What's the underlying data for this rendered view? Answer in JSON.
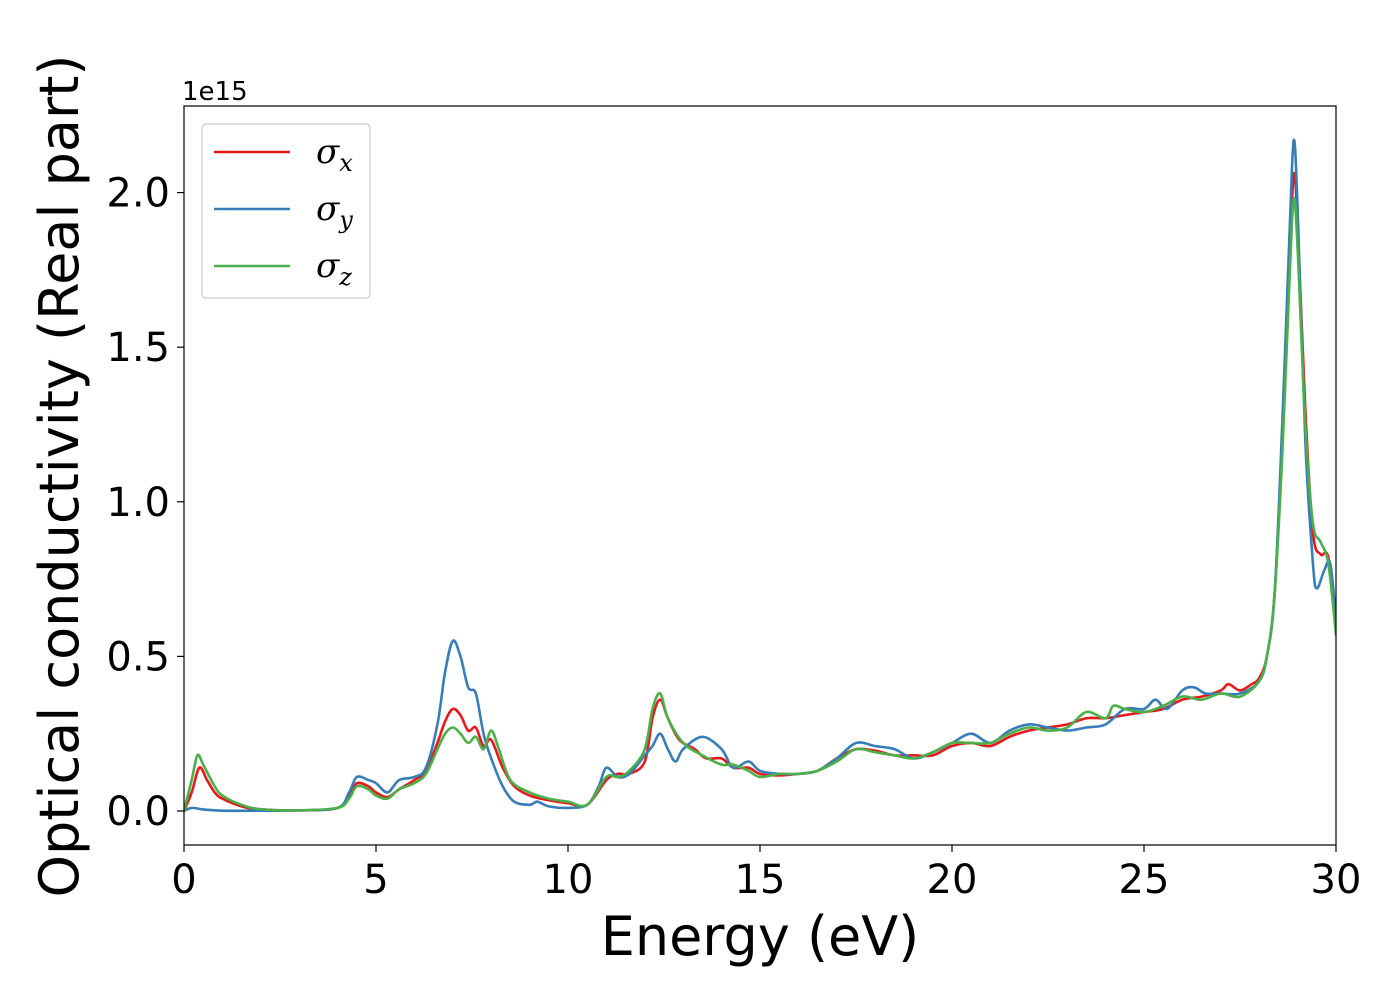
{
  "chart_data": {
    "type": "line",
    "xlabel": "Energy (eV)",
    "ylabel": "Optical conductivity (Real part)",
    "y_offset_text": "1e15",
    "xlim": [
      0,
      30
    ],
    "ylim": [
      -0.11,
      2.28
    ],
    "x_ticks": [
      0,
      5,
      10,
      15,
      20,
      25,
      30
    ],
    "x_tick_labels": [
      "0",
      "5",
      "10",
      "15",
      "20",
      "25",
      "30"
    ],
    "y_ticks": [
      0.0,
      0.5,
      1.0,
      1.5,
      2.0
    ],
    "y_tick_labels": [
      "0.0",
      "0.5",
      "1.0",
      "1.5",
      "2.0"
    ],
    "grid": false,
    "legend_position": "upper-left",
    "series": [
      {
        "name": "σx",
        "legend_base": "σ",
        "legend_sub": "x",
        "color": "#e41a1c",
        "points": [
          [
            0,
            0.0
          ],
          [
            0.2,
            0.06
          ],
          [
            0.4,
            0.14
          ],
          [
            0.6,
            0.1
          ],
          [
            0.8,
            0.06
          ],
          [
            1.0,
            0.04
          ],
          [
            1.5,
            0.015
          ],
          [
            2.0,
            0.005
          ],
          [
            3.0,
            0.002
          ],
          [
            4.0,
            0.01
          ],
          [
            4.3,
            0.05
          ],
          [
            4.5,
            0.09
          ],
          [
            4.8,
            0.08
          ],
          [
            5.0,
            0.06
          ],
          [
            5.3,
            0.045
          ],
          [
            5.6,
            0.07
          ],
          [
            6.0,
            0.1
          ],
          [
            6.3,
            0.13
          ],
          [
            6.6,
            0.22
          ],
          [
            6.8,
            0.29
          ],
          [
            7.0,
            0.33
          ],
          [
            7.2,
            0.31
          ],
          [
            7.4,
            0.26
          ],
          [
            7.6,
            0.27
          ],
          [
            7.8,
            0.21
          ],
          [
            8.0,
            0.23
          ],
          [
            8.3,
            0.14
          ],
          [
            8.6,
            0.08
          ],
          [
            9.0,
            0.05
          ],
          [
            9.5,
            0.035
          ],
          [
            10.0,
            0.025
          ],
          [
            10.5,
            0.02
          ],
          [
            11.0,
            0.1
          ],
          [
            11.3,
            0.12
          ],
          [
            11.6,
            0.12
          ],
          [
            12.0,
            0.16
          ],
          [
            12.2,
            0.3
          ],
          [
            12.4,
            0.36
          ],
          [
            12.6,
            0.3
          ],
          [
            12.9,
            0.23
          ],
          [
            13.3,
            0.2
          ],
          [
            13.6,
            0.17
          ],
          [
            14.0,
            0.17
          ],
          [
            14.3,
            0.14
          ],
          [
            14.7,
            0.14
          ],
          [
            15.0,
            0.12
          ],
          [
            15.5,
            0.115
          ],
          [
            16.0,
            0.12
          ],
          [
            16.5,
            0.13
          ],
          [
            17.0,
            0.17
          ],
          [
            17.5,
            0.2
          ],
          [
            18.0,
            0.195
          ],
          [
            18.5,
            0.18
          ],
          [
            19.0,
            0.18
          ],
          [
            19.5,
            0.18
          ],
          [
            20.0,
            0.21
          ],
          [
            20.5,
            0.22
          ],
          [
            21.0,
            0.21
          ],
          [
            21.5,
            0.24
          ],
          [
            22.0,
            0.26
          ],
          [
            22.5,
            0.27
          ],
          [
            23.0,
            0.28
          ],
          [
            23.5,
            0.3
          ],
          [
            24.0,
            0.3
          ],
          [
            24.5,
            0.31
          ],
          [
            25.0,
            0.32
          ],
          [
            25.5,
            0.33
          ],
          [
            26.0,
            0.36
          ],
          [
            26.5,
            0.37
          ],
          [
            27.0,
            0.39
          ],
          [
            27.2,
            0.41
          ],
          [
            27.5,
            0.39
          ],
          [
            27.8,
            0.41
          ],
          [
            28.0,
            0.43
          ],
          [
            28.2,
            0.5
          ],
          [
            28.4,
            0.7
          ],
          [
            28.6,
            1.2
          ],
          [
            28.8,
            1.8
          ],
          [
            28.9,
            2.06
          ],
          [
            29.0,
            1.9
          ],
          [
            29.2,
            1.3
          ],
          [
            29.4,
            0.9
          ],
          [
            29.6,
            0.83
          ],
          [
            29.8,
            0.82
          ],
          [
            30.0,
            0.6
          ]
        ]
      },
      {
        "name": "σy",
        "legend_base": "σ",
        "legend_sub": "y",
        "color": "#377eb8",
        "points": [
          [
            0,
            0.0
          ],
          [
            0.2,
            0.01
          ],
          [
            0.5,
            0.005
          ],
          [
            1.0,
            0.001
          ],
          [
            2.0,
            0.001
          ],
          [
            3.0,
            0.002
          ],
          [
            4.0,
            0.01
          ],
          [
            4.3,
            0.06
          ],
          [
            4.5,
            0.11
          ],
          [
            4.8,
            0.1
          ],
          [
            5.0,
            0.09
          ],
          [
            5.3,
            0.06
          ],
          [
            5.6,
            0.1
          ],
          [
            6.0,
            0.11
          ],
          [
            6.3,
            0.14
          ],
          [
            6.6,
            0.28
          ],
          [
            6.8,
            0.45
          ],
          [
            7.0,
            0.55
          ],
          [
            7.2,
            0.5
          ],
          [
            7.4,
            0.4
          ],
          [
            7.6,
            0.38
          ],
          [
            7.8,
            0.25
          ],
          [
            8.0,
            0.17
          ],
          [
            8.3,
            0.08
          ],
          [
            8.6,
            0.03
          ],
          [
            9.0,
            0.02
          ],
          [
            9.2,
            0.03
          ],
          [
            9.5,
            0.015
          ],
          [
            10.0,
            0.01
          ],
          [
            10.5,
            0.02
          ],
          [
            10.8,
            0.08
          ],
          [
            11.0,
            0.14
          ],
          [
            11.3,
            0.11
          ],
          [
            11.6,
            0.12
          ],
          [
            12.0,
            0.18
          ],
          [
            12.2,
            0.21
          ],
          [
            12.4,
            0.25
          ],
          [
            12.6,
            0.2
          ],
          [
            12.8,
            0.16
          ],
          [
            13.0,
            0.2
          ],
          [
            13.5,
            0.24
          ],
          [
            14.0,
            0.2
          ],
          [
            14.3,
            0.14
          ],
          [
            14.7,
            0.16
          ],
          [
            15.0,
            0.13
          ],
          [
            15.5,
            0.12
          ],
          [
            16.0,
            0.12
          ],
          [
            16.5,
            0.13
          ],
          [
            17.0,
            0.17
          ],
          [
            17.5,
            0.22
          ],
          [
            18.0,
            0.21
          ],
          [
            18.5,
            0.2
          ],
          [
            19.0,
            0.17
          ],
          [
            19.5,
            0.19
          ],
          [
            20.0,
            0.22
          ],
          [
            20.5,
            0.25
          ],
          [
            21.0,
            0.22
          ],
          [
            21.5,
            0.26
          ],
          [
            22.0,
            0.28
          ],
          [
            22.5,
            0.27
          ],
          [
            23.0,
            0.26
          ],
          [
            23.5,
            0.27
          ],
          [
            24.0,
            0.28
          ],
          [
            24.5,
            0.33
          ],
          [
            25.0,
            0.33
          ],
          [
            25.3,
            0.36
          ],
          [
            25.6,
            0.33
          ],
          [
            26.0,
            0.39
          ],
          [
            26.3,
            0.4
          ],
          [
            26.6,
            0.38
          ],
          [
            27.0,
            0.38
          ],
          [
            27.5,
            0.38
          ],
          [
            28.0,
            0.42
          ],
          [
            28.2,
            0.5
          ],
          [
            28.4,
            0.7
          ],
          [
            28.6,
            1.25
          ],
          [
            28.8,
            1.9
          ],
          [
            28.9,
            2.17
          ],
          [
            29.0,
            1.95
          ],
          [
            29.2,
            1.2
          ],
          [
            29.4,
            0.8
          ],
          [
            29.5,
            0.72
          ],
          [
            29.7,
            0.78
          ],
          [
            29.85,
            0.8
          ],
          [
            30.0,
            0.62
          ]
        ]
      },
      {
        "name": "σz",
        "legend_base": "σ",
        "legend_sub": "z",
        "color": "#4daf4a",
        "points": [
          [
            0,
            0.0
          ],
          [
            0.2,
            0.1
          ],
          [
            0.35,
            0.18
          ],
          [
            0.5,
            0.15
          ],
          [
            0.8,
            0.08
          ],
          [
            1.0,
            0.05
          ],
          [
            1.5,
            0.02
          ],
          [
            2.0,
            0.006
          ],
          [
            3.0,
            0.002
          ],
          [
            4.0,
            0.01
          ],
          [
            4.3,
            0.04
          ],
          [
            4.5,
            0.08
          ],
          [
            4.8,
            0.07
          ],
          [
            5.0,
            0.05
          ],
          [
            5.3,
            0.04
          ],
          [
            5.6,
            0.07
          ],
          [
            6.0,
            0.09
          ],
          [
            6.3,
            0.12
          ],
          [
            6.6,
            0.2
          ],
          [
            6.8,
            0.25
          ],
          [
            7.0,
            0.27
          ],
          [
            7.2,
            0.25
          ],
          [
            7.4,
            0.22
          ],
          [
            7.6,
            0.24
          ],
          [
            7.8,
            0.2
          ],
          [
            8.0,
            0.26
          ],
          [
            8.2,
            0.2
          ],
          [
            8.5,
            0.1
          ],
          [
            9.0,
            0.06
          ],
          [
            9.5,
            0.04
          ],
          [
            10.0,
            0.03
          ],
          [
            10.5,
            0.02
          ],
          [
            11.0,
            0.11
          ],
          [
            11.3,
            0.11
          ],
          [
            11.6,
            0.13
          ],
          [
            12.0,
            0.2
          ],
          [
            12.2,
            0.33
          ],
          [
            12.4,
            0.38
          ],
          [
            12.6,
            0.3
          ],
          [
            13.0,
            0.22
          ],
          [
            13.5,
            0.18
          ],
          [
            14.0,
            0.15
          ],
          [
            14.3,
            0.15
          ],
          [
            14.7,
            0.13
          ],
          [
            15.0,
            0.11
          ],
          [
            15.5,
            0.12
          ],
          [
            16.0,
            0.12
          ],
          [
            16.5,
            0.13
          ],
          [
            17.0,
            0.16
          ],
          [
            17.5,
            0.2
          ],
          [
            18.0,
            0.19
          ],
          [
            18.5,
            0.18
          ],
          [
            19.0,
            0.17
          ],
          [
            19.5,
            0.19
          ],
          [
            20.0,
            0.22
          ],
          [
            20.5,
            0.22
          ],
          [
            21.0,
            0.22
          ],
          [
            21.5,
            0.25
          ],
          [
            22.0,
            0.27
          ],
          [
            22.5,
            0.26
          ],
          [
            23.0,
            0.27
          ],
          [
            23.5,
            0.32
          ],
          [
            24.0,
            0.3
          ],
          [
            24.2,
            0.34
          ],
          [
            24.5,
            0.33
          ],
          [
            25.0,
            0.32
          ],
          [
            25.5,
            0.34
          ],
          [
            26.0,
            0.37
          ],
          [
            26.5,
            0.36
          ],
          [
            27.0,
            0.38
          ],
          [
            27.5,
            0.37
          ],
          [
            28.0,
            0.42
          ],
          [
            28.2,
            0.5
          ],
          [
            28.4,
            0.7
          ],
          [
            28.6,
            1.15
          ],
          [
            28.8,
            1.75
          ],
          [
            28.9,
            1.98
          ],
          [
            29.0,
            1.82
          ],
          [
            29.2,
            1.25
          ],
          [
            29.4,
            0.93
          ],
          [
            29.6,
            0.87
          ],
          [
            29.8,
            0.8
          ],
          [
            30.0,
            0.57
          ]
        ]
      }
    ]
  }
}
